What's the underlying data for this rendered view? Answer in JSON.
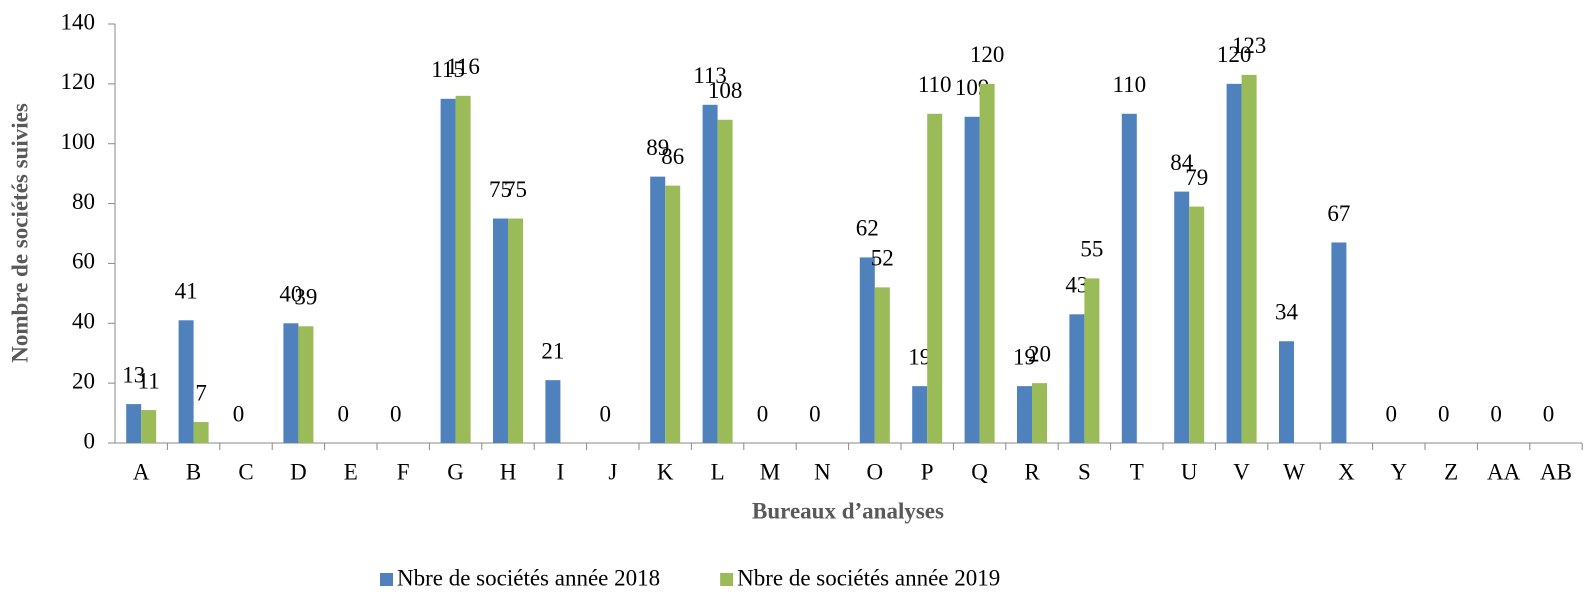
{
  "chart_data": {
    "type": "bar",
    "categories": [
      "A",
      "B",
      "C",
      "D",
      "E",
      "F",
      "G",
      "H",
      "I",
      "J",
      "K",
      "L",
      "M",
      "N",
      "O",
      "P",
      "Q",
      "R",
      "S",
      "T",
      "U",
      "V",
      "W",
      "X",
      "Y",
      "Z",
      "AA",
      "AB"
    ],
    "series": [
      {
        "name": "Nbre de sociétés année 2018",
        "color": "#4f81bd",
        "values": [
          13,
          41,
          0,
          40,
          0,
          0,
          115,
          75,
          21,
          0,
          89,
          113,
          0,
          0,
          62,
          19,
          109,
          19,
          43,
          110,
          84,
          120,
          34,
          67,
          0,
          0,
          0,
          0
        ]
      },
      {
        "name": "Nbre de sociétés année 2019",
        "color": "#9bbb59",
        "values": [
          11,
          7,
          null,
          39,
          null,
          null,
          116,
          75,
          null,
          null,
          86,
          108,
          null,
          null,
          52,
          110,
          120,
          20,
          55,
          null,
          79,
          123,
          null,
          null,
          null,
          null,
          null,
          null
        ]
      }
    ],
    "x_label": "Bureaux d’analyses",
    "y_label": "Nombre de sociétés suivies",
    "ylim": [
      0,
      140
    ],
    "yticks": [
      0,
      20,
      40,
      60,
      80,
      100,
      120,
      140
    ],
    "grid": false,
    "legend": "bottom"
  }
}
